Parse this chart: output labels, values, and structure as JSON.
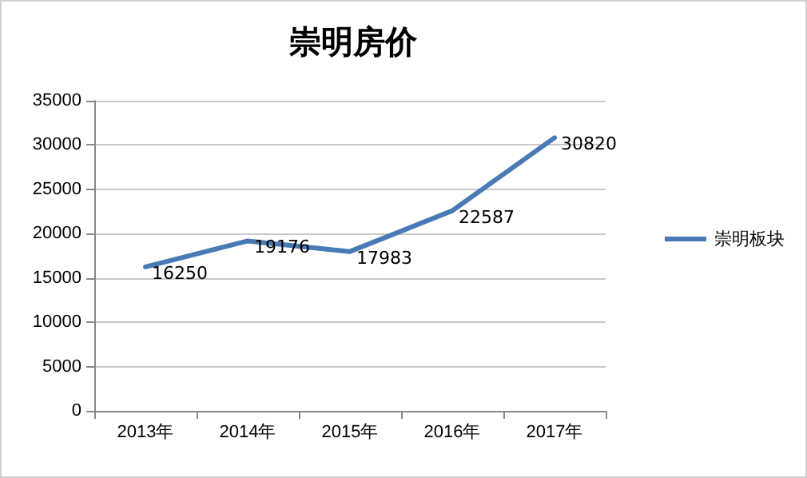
{
  "chart_data": {
    "type": "line",
    "title": "崇明房价",
    "categories": [
      "2013年",
      "2014年",
      "2015年",
      "2016年",
      "2017年"
    ],
    "series": [
      {
        "name": "崇明板块",
        "color": "#4a7ab5",
        "values": [
          16250,
          19176,
          17983,
          22587,
          30820
        ]
      }
    ],
    "ylim": [
      0,
      35000
    ],
    "yticks": [
      0,
      5000,
      10000,
      15000,
      20000,
      25000,
      30000,
      35000
    ],
    "grid": "y",
    "legend": "right",
    "marker": "none",
    "line_style": "solid",
    "data_labels": true
  }
}
